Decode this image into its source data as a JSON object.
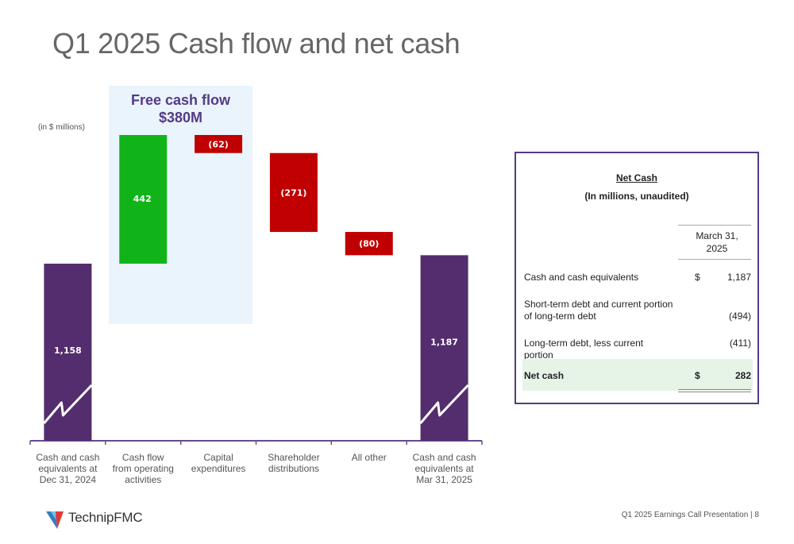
{
  "slide": {
    "title": "Q1 2025 Cash flow and net cash",
    "units_note": "(in $ millions)",
    "free_cash_flow": {
      "label": "Free cash flow",
      "amount": "$380M"
    },
    "footer": "Q1 2025 Earnings Call Presentation  |  8",
    "logo_text": "TechnipFMC"
  },
  "chart_data": {
    "type": "waterfall",
    "units": "$ millions",
    "categories": [
      "Cash and cash equivalents at Dec 31, 2024",
      "Cash flow from operating activities",
      "Capital expenditures",
      "Shareholder distributions",
      "All other",
      "Cash and cash equivalents at Mar 31, 2025"
    ],
    "category_label_lines": [
      [
        "Cash and cash",
        "equivalents at",
        "Dec 31, 2024"
      ],
      [
        "Cash flow",
        "from operating",
        "activities"
      ],
      [
        "Capital",
        "expenditures"
      ],
      [
        "Shareholder",
        "distributions"
      ],
      [
        "All other"
      ],
      [
        "Cash and cash",
        "equivalents at",
        "Mar 31, 2025"
      ]
    ],
    "values": [
      1158,
      442,
      -62,
      -271,
      -80,
      1187
    ],
    "data_labels": [
      "1,158",
      "442",
      "(62)",
      "(271)",
      "(80)",
      "1,187"
    ],
    "kinds": [
      "total",
      "increase",
      "decrease",
      "decrease",
      "decrease",
      "total"
    ],
    "axis_break_on_totals": true,
    "colors": {
      "total": "#532d6d",
      "increase": "#10b419",
      "decrease": "#c00000",
      "axis": "#6a4a8c"
    }
  },
  "net_cash_table": {
    "title": "Net Cash",
    "subtitle": "(In millions, unaudited)",
    "column_header": [
      "March 31,",
      "2025"
    ],
    "rows": [
      {
        "label_lines": [
          "Cash and cash equivalents"
        ],
        "currency": "$",
        "value": "1,187"
      },
      {
        "label_lines": [
          "Short-term debt and current portion",
          "of long-term debt"
        ],
        "currency": "",
        "value": "(494)"
      },
      {
        "label_lines": [
          "Long-term debt, less current portion"
        ],
        "currency": "",
        "value": "(411)"
      }
    ],
    "total": {
      "label": "Net cash",
      "currency": "$",
      "value": "282"
    },
    "colors": {
      "border": "#553a86",
      "total_bg": "#e6f4e8"
    }
  }
}
